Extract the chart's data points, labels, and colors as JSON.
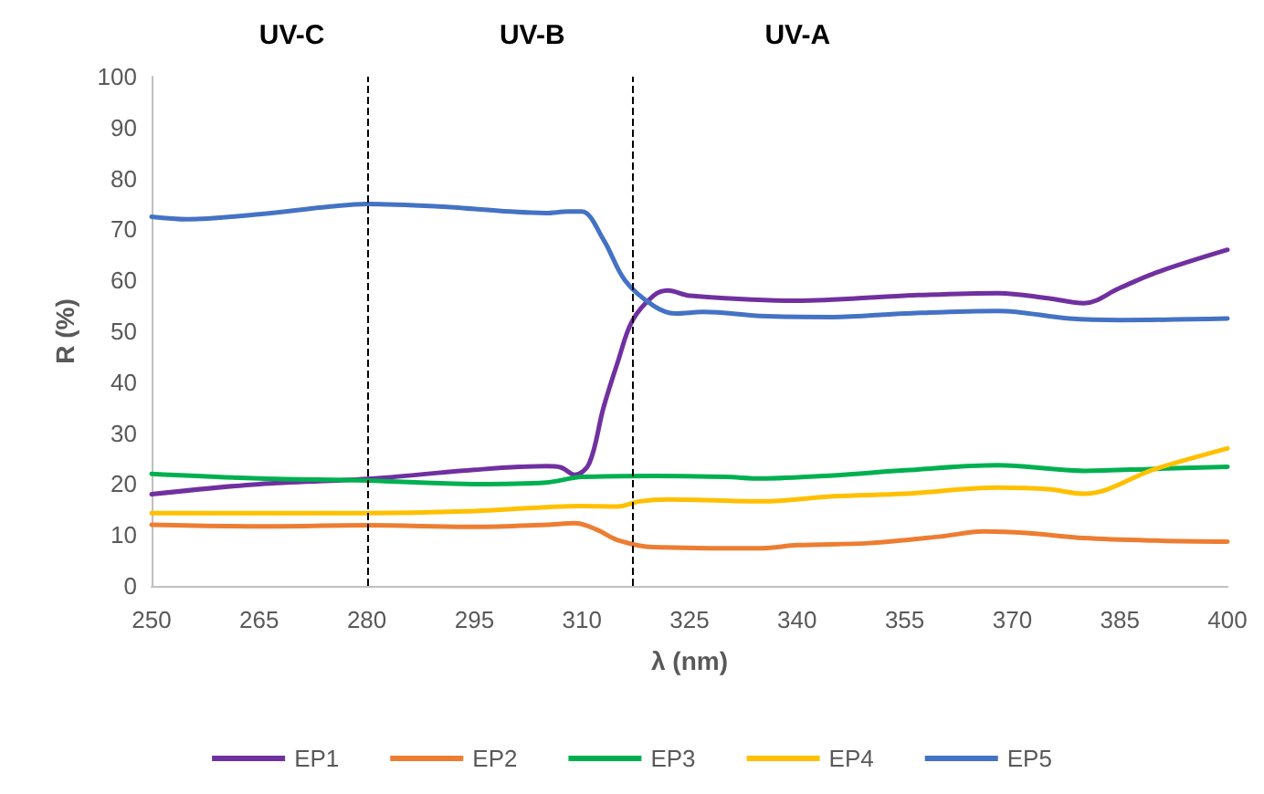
{
  "chart_data": {
    "type": "line",
    "xlabel": "λ (nm)",
    "ylabel": "R (%)",
    "xlim": [
      250,
      400
    ],
    "xticks": [
      250,
      265,
      280,
      295,
      310,
      325,
      340,
      355,
      370,
      385,
      400
    ],
    "ylim": [
      0,
      100
    ],
    "yticks": [
      0,
      10,
      20,
      30,
      40,
      50,
      60,
      70,
      80,
      90,
      100
    ],
    "grid": false,
    "legend": "bottom",
    "marker": "none",
    "line_style": "solid",
    "ref_lines": [
      {
        "axis": "x",
        "value": 280,
        "color": "#000000",
        "line_style": "dashed"
      },
      {
        "axis": "x",
        "value": 317,
        "color": "#000000",
        "line_style": "dashed"
      }
    ],
    "annotations": [
      "UV-C",
      "UV-B",
      "UV-A"
    ],
    "series": [
      {
        "name": "EP1",
        "color": "#7030a0",
        "x": [
          250,
          265,
          280,
          295,
          305,
          307,
          309,
          311,
          313,
          315,
          317,
          320,
          322,
          325,
          340,
          355,
          368,
          375,
          380,
          385,
          390,
          400
        ],
        "values": [
          18,
          20,
          21,
          22.8,
          23.5,
          23.3,
          21.8,
          24,
          35,
          44,
          52,
          57,
          58,
          57,
          56,
          57,
          57.5,
          56.5,
          55.5,
          58.5,
          61.5,
          66
        ]
      },
      {
        "name": "EP2",
        "color": "#ed7d31",
        "x": [
          250,
          265,
          280,
          295,
          305,
          309,
          312,
          315,
          320,
          335,
          340,
          350,
          360,
          366,
          372,
          380,
          390,
          400
        ],
        "values": [
          12,
          11.7,
          11.9,
          11.6,
          12,
          12.3,
          11.1,
          9,
          7.6,
          7.4,
          8,
          8.4,
          9.7,
          10.7,
          10.4,
          9.4,
          8.9,
          8.7
        ]
      },
      {
        "name": "EP3",
        "color": "#00b050",
        "x": [
          250,
          265,
          280,
          295,
          305,
          310,
          320,
          330,
          335,
          345,
          355,
          368,
          380,
          390,
          400
        ],
        "values": [
          22,
          21.1,
          20.7,
          20,
          20.3,
          21.4,
          21.6,
          21.4,
          21.1,
          21.7,
          22.7,
          23.7,
          22.6,
          23,
          23.4
        ]
      },
      {
        "name": "EP4",
        "color": "#ffc000",
        "x": [
          250,
          280,
          295,
          310,
          315,
          318,
          322,
          335,
          345,
          355,
          368,
          375,
          380,
          390,
          400
        ],
        "values": [
          14.3,
          14.3,
          14.7,
          15.7,
          15.6,
          16.6,
          17,
          16.6,
          17.6,
          18.1,
          19.3,
          19,
          18.1,
          23,
          27
        ]
      },
      {
        "name": "EP5",
        "color": "#4472c4",
        "x": [
          250,
          255,
          265,
          275,
          280,
          290,
          300,
          305,
          308,
          310,
          313,
          316,
          320,
          323,
          327,
          335,
          345,
          355,
          368,
          378,
          385,
          400
        ],
        "values": [
          72.5,
          72,
          73,
          74.5,
          75,
          74.5,
          73.5,
          73.2,
          73.5,
          73.5,
          68,
          60,
          55,
          53.5,
          53.8,
          53,
          52.8,
          53.5,
          54,
          52.5,
          52.2,
          52.5
        ]
      }
    ]
  }
}
